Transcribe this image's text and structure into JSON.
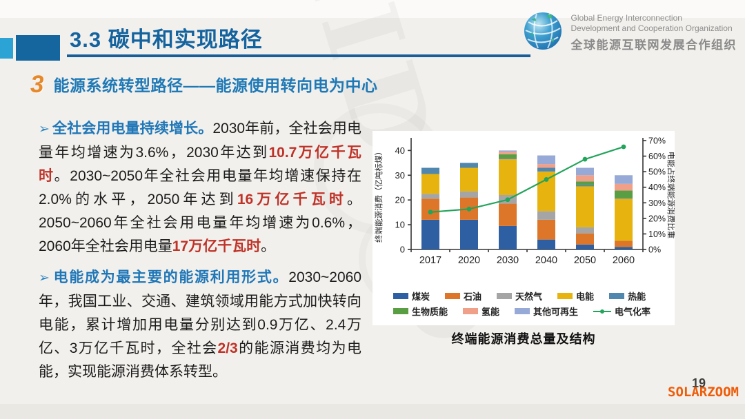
{
  "header": {
    "title": "3.3 碳中和实现路径",
    "logo": {
      "line1": "Global Energy Interconnection",
      "line2": "Development and Cooperation Organization",
      "line3": "全球能源互联网发展合作组织"
    }
  },
  "section": {
    "number": "3",
    "heading": "能源系统转型路径——能源使用转向电为中心"
  },
  "bullets": [
    {
      "lead": "全社会用电量持续增长。",
      "segments": [
        {
          "text": "2030年前，全社会用电量年均增速为3.6%，2030年达到",
          "style": "normal"
        },
        {
          "text": "10.7万亿千瓦时",
          "style": "red"
        },
        {
          "text": "。2030~2050年全社会用电量年均增速保持在2.0%的水平，2050年达到",
          "style": "normal"
        },
        {
          "text": "16万亿千瓦时",
          "style": "red"
        },
        {
          "text": "。2050~2060年全社会用电量年均增速为0.6%，2060年全社会用电量",
          "style": "normal"
        },
        {
          "text": "17万亿千瓦时",
          "style": "red"
        },
        {
          "text": "。",
          "style": "normal"
        }
      ]
    },
    {
      "lead": "电能成为最主要的能源利用形式。",
      "segments": [
        {
          "text": "2030~2060年，我国工业、交通、建筑领域用能方式加快转向电能，累计增加用电量分别达到0.9万亿、2.4万亿、3万亿千瓦时，全社会",
          "style": "normal"
        },
        {
          "text": "2/3",
          "style": "red"
        },
        {
          "text": "的能源消费均为电能，实现能源消费体系转型。",
          "style": "normal"
        }
      ]
    }
  ],
  "chart_data": {
    "type": "bar",
    "subtype": "stacked-bars-with-line",
    "categories": [
      "2017",
      "2020",
      "2030",
      "2040",
      "2050",
      "2060"
    ],
    "series": [
      {
        "name": "煤炭",
        "color": "#2e5fa3",
        "values": [
          12,
          12,
          9.5,
          4,
          2,
          1
        ]
      },
      {
        "name": "石油",
        "color": "#dd7628",
        "values": [
          8.5,
          9,
          9,
          8,
          4.5,
          2.5
        ]
      },
      {
        "name": "天然气",
        "color": "#a5a5a5",
        "values": [
          2,
          2.5,
          3.5,
          3.5,
          2.5,
          0
        ]
      },
      {
        "name": "电能",
        "color": "#e6b30f",
        "values": [
          8,
          9.5,
          14.5,
          16,
          16.5,
          17
        ]
      },
      {
        "name": "热能",
        "color": "#4f87ae",
        "values": [
          2.5,
          2,
          0.5,
          1.5,
          0.5,
          0.3
        ]
      },
      {
        "name": "生物质能",
        "color": "#5a9e43",
        "values": [
          0,
          0,
          1.5,
          0,
          1.5,
          3
        ]
      },
      {
        "name": "氢能",
        "color": "#f0a089",
        "values": [
          0,
          0,
          1,
          1.5,
          2.5,
          2.7
        ]
      },
      {
        "name": "其他可再生",
        "color": "#97a9d7",
        "values": [
          0,
          0,
          0.5,
          3.5,
          3,
          3.5
        ]
      }
    ],
    "line_series": {
      "name": "电气化率",
      "color": "#22a45a",
      "axis": "right",
      "values": [
        24,
        26,
        32,
        45,
        58,
        66
      ]
    },
    "ylabel_left": "终端能源消费（亿吨标煤）",
    "ylabel_right": "电能占终端能源消费比重",
    "ylim_left": [
      0,
      44
    ],
    "yticks_left": [
      0,
      10,
      20,
      30,
      40
    ],
    "ylim_right": [
      0,
      70
    ],
    "yticks_right": [
      "0%",
      "10%",
      "20%",
      "30%",
      "40%",
      "50%",
      "60%",
      "70%"
    ],
    "legend_rows": [
      [
        "煤炭",
        "石油",
        "天然气",
        "电能",
        "热能"
      ],
      [
        "生物质能",
        "氢能",
        "其他可再生",
        "电气化率"
      ]
    ],
    "grid": false,
    "legend_position": "bottom"
  },
  "chart_caption": "终端能源消费总量及结构",
  "footer": {
    "page_number": "19",
    "watermark": "SOLARZOOM"
  },
  "background_watermark": "GEIDCO"
}
